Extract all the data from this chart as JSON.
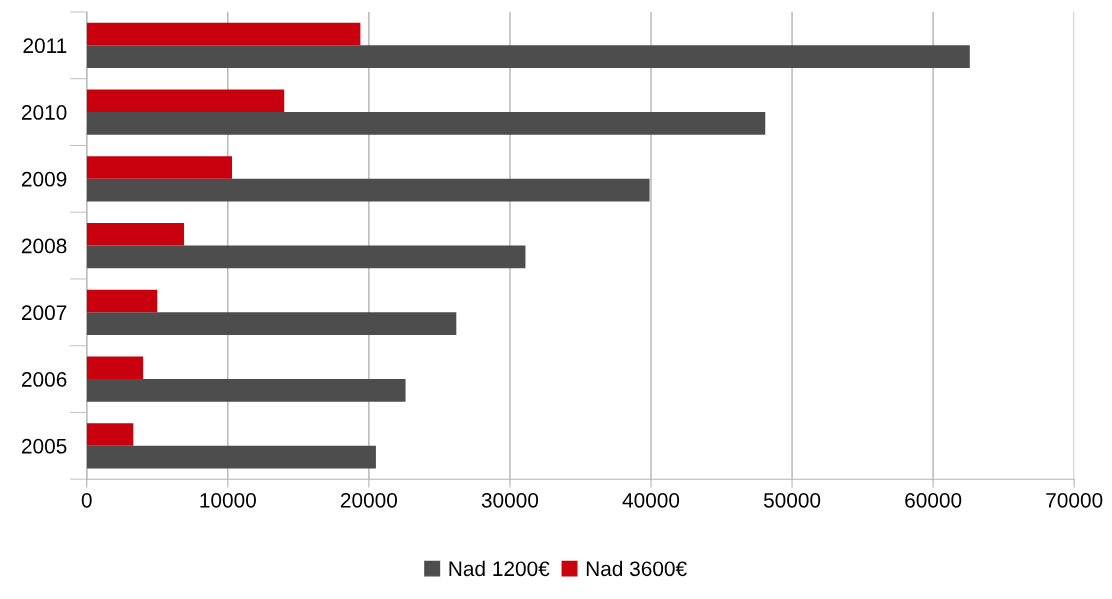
{
  "chart_data": {
    "type": "bar",
    "orientation": "horizontal",
    "categories": [
      "2011",
      "2010",
      "2009",
      "2008",
      "2007",
      "2006",
      "2005"
    ],
    "series": [
      {
        "name": "Nad 1200€",
        "color": "#4d4d4d",
        "values": [
          62600,
          48100,
          39900,
          31100,
          26200,
          22600,
          20500
        ]
      },
      {
        "name": "Nad 3600€",
        "color": "#c9000d",
        "values": [
          19400,
          14000,
          10300,
          6900,
          5000,
          4000,
          3300
        ]
      }
    ],
    "xlim": [
      0,
      70000
    ],
    "xticks": [
      0,
      10000,
      20000,
      30000,
      40000,
      50000,
      60000,
      70000
    ],
    "grid": "x",
    "legend": "bottom"
  }
}
